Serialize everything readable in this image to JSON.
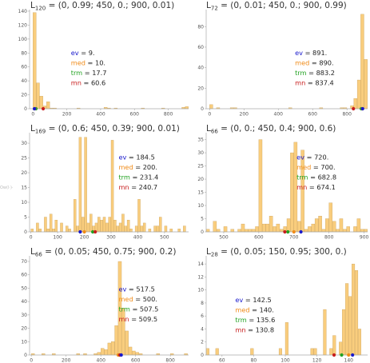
{
  "colors": {
    "bar_fill": "#f9cd7d",
    "bar_edge": "#c8a05a",
    "axis": "#aaaaaa",
    "ev": "#1a1acc",
    "med": "#f08c1a",
    "trm": "#23a323",
    "mn": "#c81e1e"
  },
  "side_label": "Ow(l·)·",
  "chart_data": [
    {
      "type": "bar",
      "title": "L120 = (0, 0.99; 450, 0.; 900, 0.01)",
      "title_base": "L",
      "title_sub": "120",
      "title_rest": " = (0, 0.99; 450, 0.; 900, 0.01)",
      "x_range": [
        -20,
        920
      ],
      "y_range": [
        0,
        140
      ],
      "x_ticks": [
        0,
        200,
        400,
        600,
        800
      ],
      "y_ticks": [
        0,
        20,
        40,
        60,
        80,
        100,
        120,
        140
      ],
      "bin_width": 20,
      "bars": [
        [
          0,
          138
        ],
        [
          20,
          37
        ],
        [
          40,
          18
        ],
        [
          60,
          4
        ],
        [
          80,
          10
        ],
        [
          100,
          1
        ],
        [
          120,
          1
        ],
        [
          260,
          1
        ],
        [
          420,
          2
        ],
        [
          440,
          1
        ],
        [
          480,
          1
        ],
        [
          640,
          1
        ],
        [
          760,
          1
        ],
        [
          880,
          2
        ],
        [
          900,
          3
        ]
      ],
      "stats": {
        "ev": "ev = 9.",
        "med": "med = 10.",
        "trm": "trm = 17.7",
        "mn": "mn = 60.6"
      },
      "stat_values": {
        "ev": 9,
        "med": 10,
        "trm": 17.7,
        "mn": 60.6
      }
    },
    {
      "type": "bar",
      "title": "L72 = (0, 0.01; 450, 0.; 900, 0.99)",
      "title_base": "L",
      "title_sub": "72",
      "title_rest": " = (0, 0.01; 450, 0.; 900, 0.99)",
      "x_range": [
        -20,
        920
      ],
      "y_range": [
        0,
        95
      ],
      "x_ticks": [
        0,
        200,
        400,
        600,
        800
      ],
      "y_ticks": [
        0,
        20,
        40,
        60,
        80
      ],
      "bin_width": 20,
      "bars": [
        [
          0,
          4
        ],
        [
          40,
          1
        ],
        [
          120,
          1
        ],
        [
          140,
          1
        ],
        [
          460,
          1
        ],
        [
          640,
          1
        ],
        [
          760,
          1
        ],
        [
          780,
          1
        ],
        [
          820,
          3
        ],
        [
          840,
          10
        ],
        [
          860,
          28
        ],
        [
          880,
          92
        ],
        [
          900,
          48
        ]
      ],
      "stats": {
        "ev": "ev = 891.",
        "med": "med = 890.",
        "trm": "trm = 883.2",
        "mn": "mn = 837.4"
      },
      "stat_values": {
        "ev": 891,
        "med": 890,
        "trm": 883.2,
        "mn": 837.4
      }
    },
    {
      "type": "bar",
      "title": "L169 = (0, 0.6; 450, 0.39; 900, 0.01)",
      "title_base": "L",
      "title_sub": "169",
      "title_rest": " = (0, 0.6; 450, 0.39; 900, 0.01)",
      "x_range": [
        -5,
        590
      ],
      "y_range": [
        0,
        33
      ],
      "x_ticks": [
        0,
        100,
        200,
        300,
        400,
        500
      ],
      "y_ticks": [
        0,
        5,
        10,
        15,
        20,
        25,
        30
      ],
      "bin_width": 10,
      "bars": [
        [
          0,
          1
        ],
        [
          20,
          3
        ],
        [
          30,
          1
        ],
        [
          50,
          5
        ],
        [
          60,
          1
        ],
        [
          70,
          6
        ],
        [
          80,
          1
        ],
        [
          90,
          4
        ],
        [
          110,
          3
        ],
        [
          130,
          2
        ],
        [
          140,
          1
        ],
        [
          160,
          11
        ],
        [
          170,
          2
        ],
        [
          180,
          32
        ],
        [
          190,
          5
        ],
        [
          200,
          32
        ],
        [
          210,
          3
        ],
        [
          220,
          6
        ],
        [
          230,
          2
        ],
        [
          240,
          3
        ],
        [
          250,
          5
        ],
        [
          260,
          4
        ],
        [
          270,
          5
        ],
        [
          280,
          3
        ],
        [
          290,
          5
        ],
        [
          300,
          31
        ],
        [
          310,
          4
        ],
        [
          320,
          2
        ],
        [
          330,
          3
        ],
        [
          340,
          6
        ],
        [
          350,
          2
        ],
        [
          360,
          4
        ],
        [
          370,
          1
        ],
        [
          390,
          2
        ],
        [
          400,
          11
        ],
        [
          410,
          2
        ],
        [
          420,
          3
        ],
        [
          440,
          1
        ],
        [
          460,
          2
        ],
        [
          470,
          2
        ],
        [
          480,
          5
        ],
        [
          500,
          2
        ],
        [
          520,
          1
        ],
        [
          550,
          1
        ],
        [
          570,
          2
        ]
      ],
      "stats": {
        "ev": "ev = 184.5",
        "med": "med = 200.",
        "trm": "trm = 231.4",
        "mn": "mn = 240.7"
      },
      "stat_values": {
        "ev": 184.5,
        "med": 200,
        "trm": 231.4,
        "mn": 240.7
      }
    },
    {
      "type": "bar",
      "title": "L66 = (0, 0.; 450, 0.4; 900, 0.6)",
      "title_base": "L",
      "title_sub": "66",
      "title_rest": " = (0, 0.; 450, 0.4; 900, 0.6)",
      "x_range": [
        450,
        910
      ],
      "y_range": [
        0,
        37
      ],
      "x_ticks": [
        500,
        600,
        700,
        800,
        900
      ],
      "y_ticks": [
        0,
        5,
        10,
        15,
        20,
        25,
        30,
        35
      ],
      "bin_width": 10,
      "bars": [
        [
          450,
          1
        ],
        [
          470,
          4
        ],
        [
          480,
          1
        ],
        [
          500,
          2
        ],
        [
          520,
          1
        ],
        [
          540,
          1
        ],
        [
          550,
          3
        ],
        [
          560,
          1
        ],
        [
          570,
          1
        ],
        [
          580,
          1
        ],
        [
          590,
          2
        ],
        [
          600,
          35
        ],
        [
          610,
          3
        ],
        [
          620,
          3
        ],
        [
          630,
          6
        ],
        [
          640,
          2
        ],
        [
          650,
          3
        ],
        [
          660,
          1
        ],
        [
          670,
          2
        ],
        [
          680,
          5
        ],
        [
          690,
          30
        ],
        [
          700,
          34
        ],
        [
          710,
          4
        ],
        [
          720,
          31
        ],
        [
          730,
          1
        ],
        [
          740,
          2
        ],
        [
          750,
          3
        ],
        [
          760,
          5
        ],
        [
          770,
          6
        ],
        [
          780,
          1
        ],
        [
          790,
          5
        ],
        [
          800,
          11
        ],
        [
          810,
          4
        ],
        [
          820,
          1
        ],
        [
          830,
          5
        ],
        [
          840,
          1
        ],
        [
          850,
          2
        ],
        [
          870,
          2
        ],
        [
          880,
          5
        ],
        [
          890,
          1
        ],
        [
          900,
          1
        ]
      ],
      "stats": {
        "ev": "ev = 720.",
        "med": "med = 700.",
        "trm": "trm = 682.8",
        "mn": "mn = 674.1"
      },
      "stat_values": {
        "ev": 720,
        "med": 700,
        "trm": 682.8,
        "mn": 674.1
      }
    },
    {
      "type": "bar",
      "title": "L66 = (0, 0.05; 450, 0.75; 900, 0.2)",
      "title_base": "L",
      "title_sub": "66",
      "title_rest": " = (0, 0.05; 450, 0.75; 900, 0.2)",
      "x_range": [
        -10,
        905
      ],
      "y_range": [
        0,
        73
      ],
      "x_ticks": [
        0,
        200,
        400,
        600,
        800
      ],
      "y_ticks": [
        0,
        10,
        20,
        30,
        40,
        50,
        60,
        70
      ],
      "bin_width": 20,
      "bars": [
        [
          0,
          1
        ],
        [
          60,
          1
        ],
        [
          120,
          1
        ],
        [
          260,
          1
        ],
        [
          300,
          1
        ],
        [
          360,
          1
        ],
        [
          380,
          2
        ],
        [
          400,
          5
        ],
        [
          420,
          4
        ],
        [
          440,
          9
        ],
        [
          460,
          10
        ],
        [
          480,
          22
        ],
        [
          500,
          70
        ],
        [
          520,
          35
        ],
        [
          540,
          18
        ],
        [
          560,
          6
        ],
        [
          580,
          3
        ],
        [
          600,
          2
        ],
        [
          620,
          1
        ],
        [
          720,
          1
        ],
        [
          800,
          1
        ],
        [
          880,
          1
        ]
      ],
      "stats": {
        "ev": "ev = 517.5",
        "med": "med = 500.",
        "trm": "trm = 507.5",
        "mn": "mn = 509.5"
      },
      "stat_values": {
        "ev": 517.5,
        "med": 500,
        "trm": 507.5,
        "mn": 509.5
      }
    },
    {
      "type": "bar",
      "title": "L28 = (0, 0.05; 150, 0.95; 300, 0.)",
      "title_base": "L",
      "title_sub": "28",
      "title_rest": " = (0, 0.05; 150, 0.95; 300, 0.)",
      "x_range": [
        50,
        152
      ],
      "y_range": [
        0,
        15
      ],
      "x_ticks": [
        60,
        80,
        100,
        120,
        140
      ],
      "y_ticks": [
        0,
        2,
        4,
        6,
        8,
        10,
        12,
        14
      ],
      "bin_width": 2,
      "bars": [
        [
          50,
          1
        ],
        [
          56,
          1
        ],
        [
          78,
          1
        ],
        [
          96,
          1
        ],
        [
          100,
          5
        ],
        [
          116,
          1
        ],
        [
          118,
          1
        ],
        [
          124,
          7
        ],
        [
          128,
          1
        ],
        [
          130,
          3
        ],
        [
          134,
          2
        ],
        [
          136,
          7
        ],
        [
          138,
          11
        ],
        [
          140,
          9
        ],
        [
          142,
          14
        ],
        [
          144,
          13
        ],
        [
          146,
          4
        ]
      ],
      "stats": {
        "ev": "ev = 142.5",
        "med": "med = 140.",
        "trm": "trm = 135.6",
        "mn": "mn = 130.8"
      },
      "stat_values": {
        "ev": 142.5,
        "med": 140,
        "trm": 135.6,
        "mn": 130.8
      }
    }
  ]
}
